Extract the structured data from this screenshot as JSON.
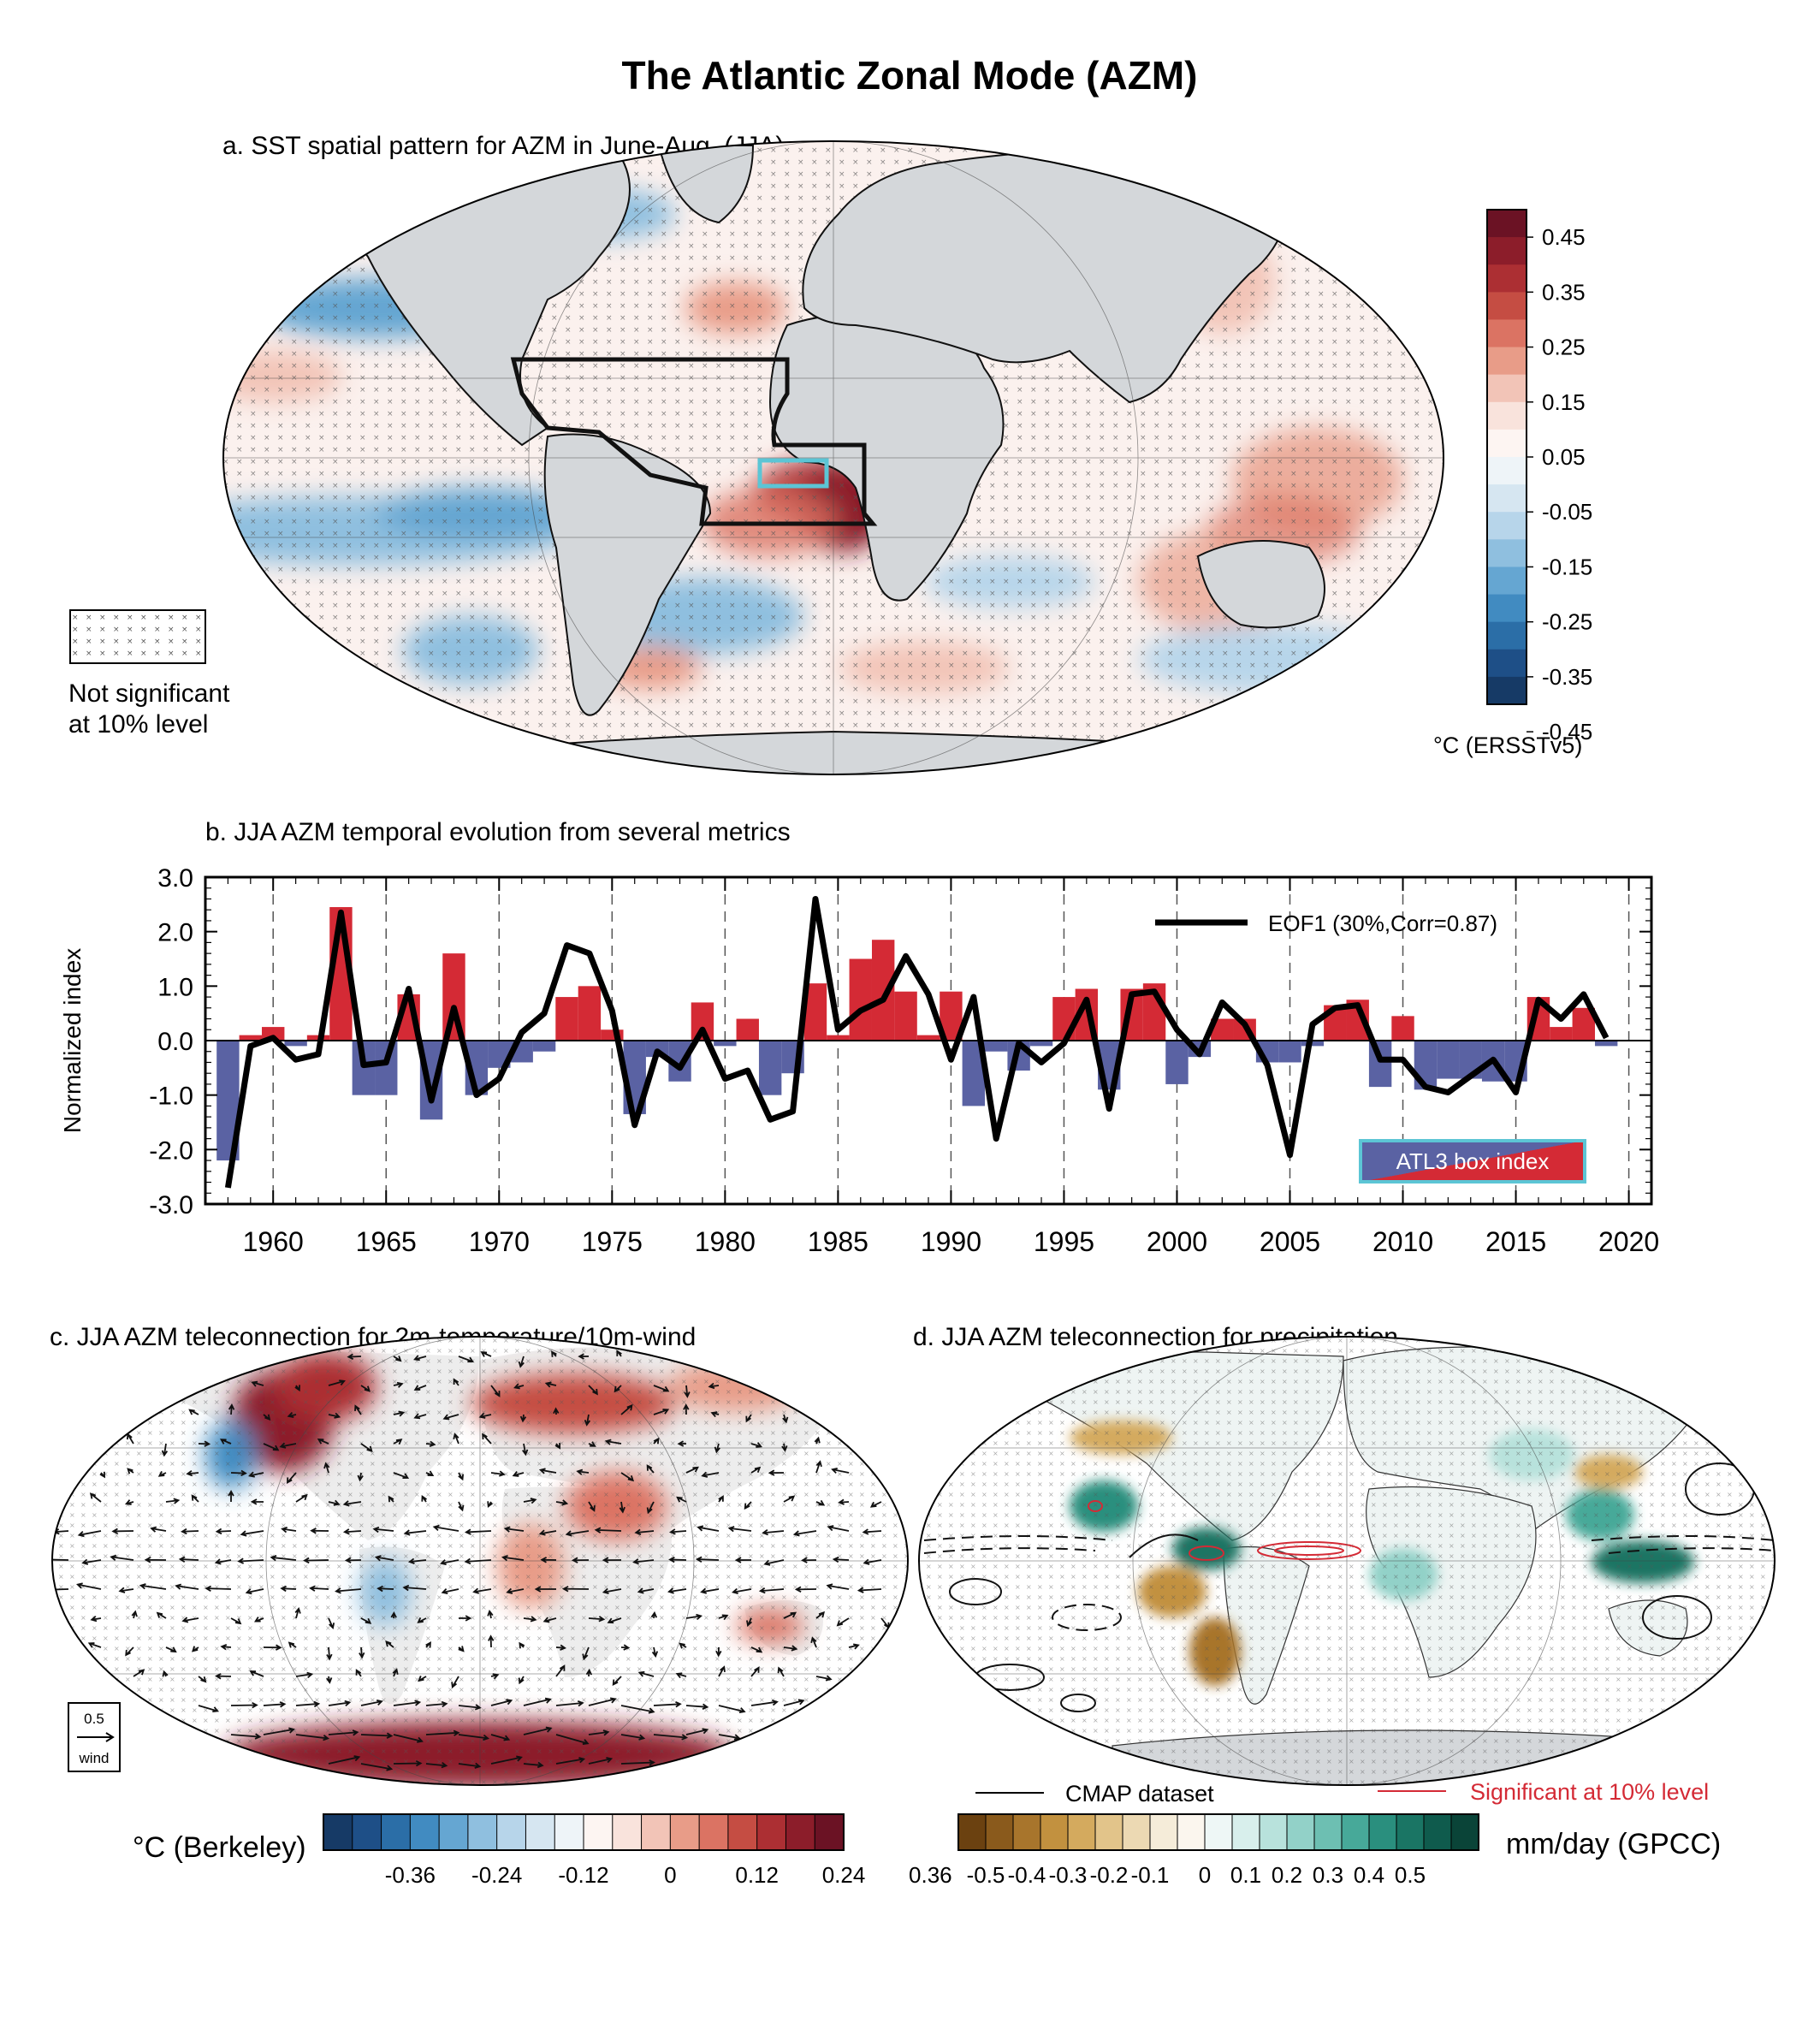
{
  "title": "The Atlantic Zonal Mode (AZM)",
  "panel_a": {
    "title": "a. SST spatial pattern for AZM in June-Aug. (JJA)",
    "legend_line1": "Not significant",
    "legend_line2": "at 10% level",
    "colorbar_unit": "°C (ERSSTv5)",
    "colorbar_ticks": [
      "0.45",
      "0.35",
      "0.25",
      "0.15",
      "0.05",
      "-0.05",
      "-0.15",
      "-0.25",
      "-0.35",
      "-0.45"
    ],
    "colors": [
      "#6b1224",
      "#8c1d2a",
      "#ac2f33",
      "#c54d43",
      "#db7363",
      "#e89c88",
      "#f2c4b7",
      "#f9e3dc",
      "#fdf5f2",
      "#eef4f8",
      "#d6e6f1",
      "#b7d5ea",
      "#8fbfdf",
      "#65a6d2",
      "#418bc1",
      "#2b6ea7",
      "#1e4f87",
      "#163a66"
    ]
  },
  "chart_data": {
    "type": "bar",
    "title": "b. JJA AZM temporal evolution from several metrics",
    "ylabel": "Normalized index",
    "ylim": [
      -3.0,
      3.0
    ],
    "yticks": [
      "3.0",
      "2.0",
      "1.0",
      "0.0",
      "-1.0",
      "-2.0",
      "-3.0"
    ],
    "xticks": [
      "1960",
      "1965",
      "1970",
      "1975",
      "1980",
      "1985",
      "1990",
      "1995",
      "2000",
      "2005",
      "2010",
      "2015",
      "2020"
    ],
    "x": [
      1958,
      1959,
      1960,
      1961,
      1962,
      1963,
      1964,
      1965,
      1966,
      1967,
      1968,
      1969,
      1970,
      1971,
      1972,
      1973,
      1974,
      1975,
      1976,
      1977,
      1978,
      1979,
      1980,
      1981,
      1982,
      1983,
      1984,
      1985,
      1986,
      1987,
      1988,
      1989,
      1990,
      1991,
      1992,
      1993,
      1994,
      1995,
      1996,
      1997,
      1998,
      1999,
      2000,
      2001,
      2002,
      2003,
      2004,
      2005,
      2006,
      2007,
      2008,
      2009,
      2010,
      2011,
      2012,
      2013,
      2014,
      2015,
      2016,
      2017,
      2018,
      2019
    ],
    "series": [
      {
        "name": "ATL3 box index",
        "kind": "bar",
        "values": [
          -2.2,
          0.1,
          0.25,
          -0.1,
          0.1,
          2.45,
          -1.0,
          -1.0,
          0.85,
          -1.45,
          1.6,
          -1.0,
          -0.5,
          -0.4,
          -0.2,
          0.8,
          1.0,
          0.2,
          -1.35,
          -0.3,
          -0.75,
          0.7,
          -0.1,
          0.4,
          -1.0,
          -0.6,
          1.05,
          0.1,
          1.5,
          1.85,
          0.9,
          0.1,
          0.9,
          -1.2,
          -0.2,
          -0.55,
          -0.1,
          0.8,
          0.95,
          -0.9,
          0.95,
          1.05,
          -0.8,
          -0.3,
          0.4,
          0.4,
          -0.4,
          -0.4,
          -0.1,
          0.65,
          0.75,
          -0.85,
          0.45,
          -0.9,
          -0.7,
          -0.7,
          -0.75,
          -0.75,
          0.8,
          0.25,
          0.6,
          -0.1
        ]
      },
      {
        "name": "EOF1 (30%,Corr=0.87)",
        "kind": "line",
        "values": [
          -2.7,
          -0.1,
          0.05,
          -0.35,
          -0.25,
          2.35,
          -0.45,
          -0.4,
          0.95,
          -1.1,
          0.6,
          -1.0,
          -0.7,
          0.15,
          0.5,
          1.75,
          1.6,
          0.55,
          -1.55,
          -0.2,
          -0.5,
          0.2,
          -0.7,
          -0.55,
          -1.45,
          -1.3,
          2.6,
          0.2,
          0.55,
          0.75,
          1.55,
          0.85,
          -0.35,
          0.8,
          -1.8,
          -0.05,
          -0.4,
          -0.05,
          0.75,
          -1.25,
          0.85,
          0.9,
          0.2,
          -0.25,
          0.7,
          0.3,
          -0.45,
          -2.1,
          0.3,
          0.6,
          0.65,
          -0.35,
          -0.35,
          -0.85,
          -0.95,
          -0.65,
          -0.35,
          -0.95,
          0.75,
          0.4,
          0.85,
          0.05
        ]
      }
    ],
    "legend_placement": "top-right",
    "box_index_label": "ATL3 box index",
    "bar_colors": {
      "positive": "#d42a35",
      "negative": "#5a62a3"
    },
    "line_color": "#000000"
  },
  "panel_c": {
    "title": "c. JJA AZM teleconnection for 2m-temperature/10m-wind",
    "ref_vector_value": "0.5",
    "ref_vector_label": "wind",
    "colorbar_unit": "°C (Berkeley)",
    "colorbar_ticks": [
      "-0.36",
      "-0.24",
      "-0.12",
      "0",
      "0.12",
      "0.24",
      "0.36"
    ],
    "colors": [
      "#163a66",
      "#1e4f87",
      "#2b6ea7",
      "#418bc1",
      "#65a6d2",
      "#8fbfdf",
      "#b7d5ea",
      "#d6e6f1",
      "#eef4f8",
      "#fdf5f2",
      "#f9e3dc",
      "#f2c4b7",
      "#e89c88",
      "#db7363",
      "#c54d43",
      "#ac2f33",
      "#8c1d2a",
      "#6b1224"
    ]
  },
  "panel_d": {
    "title": "d. JJA AZM teleconnection for precipitation",
    "legend_cmap": "CMAP dataset",
    "legend_sig": "Significant at 10% level",
    "colorbar_unit": "mm/day (GPCC)",
    "colorbar_ticks": [
      "-0.5",
      "-0.4",
      "-0.3",
      "-0.2",
      "-0.1",
      "0",
      "0.1",
      "0.2",
      "0.3",
      "0.4",
      "0.5"
    ],
    "colors": [
      "#6b4110",
      "#8a5a1c",
      "#a8752c",
      "#c2913f",
      "#d4aa5e",
      "#e2c48a",
      "#ecd9b3",
      "#f5ecd9",
      "#fbf6ee",
      "#eef7f6",
      "#d8efec",
      "#b8e2dc",
      "#92d1c8",
      "#6dbfb2",
      "#47a999",
      "#2a8f7e",
      "#1a7564",
      "#0f5b4d",
      "#0a4438"
    ]
  }
}
